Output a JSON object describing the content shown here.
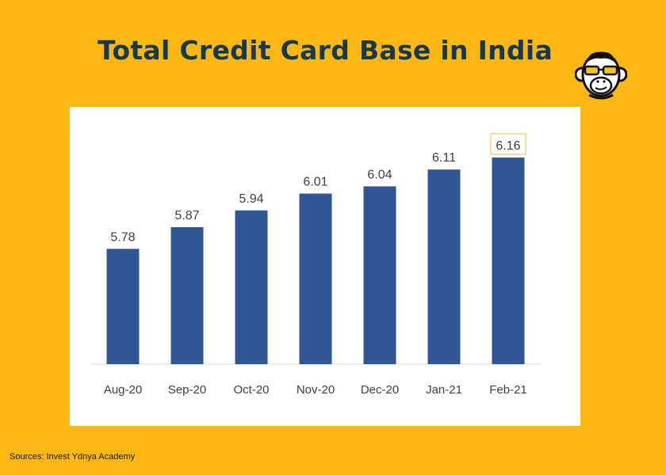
{
  "title": "Total Credit Card Base in India",
  "source": "Sources: Invest Ydnya Academy",
  "colors": {
    "background": "#FCB713",
    "title": "#163A4A",
    "bar": "#2F5597",
    "highlight_border": "#F3D27A"
  },
  "logo": {
    "icon": "monkey-with-sunglasses-icon"
  },
  "chart_data": {
    "type": "bar",
    "categories": [
      "Aug-20",
      "Sep-20",
      "Oct-20",
      "Nov-20",
      "Dec-20",
      "Jan-21",
      "Feb-21"
    ],
    "values": [
      5.78,
      5.87,
      5.94,
      6.01,
      6.04,
      6.11,
      6.16
    ],
    "value_labels": [
      "5.78",
      "5.87",
      "5.94",
      "6.01",
      "6.04",
      "6.11",
      "6.16"
    ],
    "highlighted_category": "Feb-21",
    "grid": false,
    "legend": "none"
  }
}
